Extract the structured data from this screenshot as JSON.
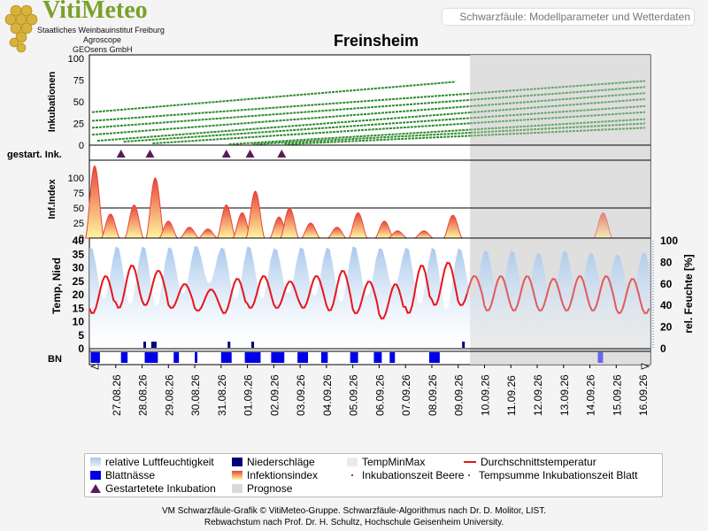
{
  "logo": {
    "title": "VitiMeteo",
    "line1": "Staatliches Weinbauinstitut Freiburg",
    "line2": "Agroscope",
    "line3": "GEOsens GmbH"
  },
  "header": {
    "subtitle": "Schwarzfäule: Modellparameter und Wetterdaten"
  },
  "title": "Freinsheim",
  "panels": {
    "incubation_label": "Inkubationen",
    "started_label": "gestart. Ink.",
    "infindex_label": "Inf.Index",
    "temp_label": "Temp, Nied",
    "humidity_label": "rel. Feuchte [%]",
    "bn_label": "BN"
  },
  "colors": {
    "incubation": "#2e8b2e",
    "forecast_bg": "#d9d9d9",
    "temp_line": "#e8141c",
    "humidity": "#a8c8ec",
    "rain": "#00007a",
    "leaf_wetness": "#0000e6",
    "started_marker": "#5a1a5a",
    "infection_top": "#e8453c",
    "infection_bottom": "#fff6a0"
  },
  "chart_data": {
    "type": "line",
    "x_dates": [
      "27.08.26",
      "28.08.26",
      "29.08.26",
      "30.08.26",
      "31.08.26",
      "01.09.26",
      "02.09.26",
      "03.09.26",
      "04.09.26",
      "05.09.26",
      "06.09.26",
      "07.09.26",
      "08.09.26",
      "09.09.26",
      "10.09.26",
      "11.09.26",
      "12.09.26",
      "13.09.26",
      "14.09.26",
      "15.09.26",
      "16.09.26"
    ],
    "forecast_start_day": 13.45,
    "incubation": {
      "yticks": [
        0,
        25,
        50,
        75,
        100
      ],
      "ylim": [
        0,
        100
      ],
      "lines": [
        {
          "start": -0.9,
          "end": 12.9,
          "y0": 38,
          "y1": 73
        },
        {
          "start": -0.9,
          "end": 20.1,
          "y0": 28,
          "y1": 74
        },
        {
          "start": -0.9,
          "end": 20.1,
          "y0": 20,
          "y1": 67
        },
        {
          "start": -0.9,
          "end": 20.1,
          "y0": 12,
          "y1": 60
        },
        {
          "start": -0.7,
          "end": 20.1,
          "y0": 5,
          "y1": 53
        },
        {
          "start": 0.3,
          "end": 20.1,
          "y0": 4,
          "y1": 45
        },
        {
          "start": 1.4,
          "end": 20.1,
          "y0": 2,
          "y1": 38
        },
        {
          "start": 4.3,
          "end": 20.1,
          "y0": 1,
          "y1": 30
        },
        {
          "start": 5.2,
          "end": 20.1,
          "y0": 1,
          "y1": 25
        },
        {
          "start": 6.4,
          "end": 20.1,
          "y0": 1,
          "y1": 20
        }
      ]
    },
    "started_infections_days": [
      0.2,
      1.3,
      4.2,
      5.1,
      6.3
    ],
    "infection_index": {
      "yticks": [
        0,
        25,
        50,
        75,
        100
      ],
      "ylim": [
        0,
        125
      ],
      "threshold": 50,
      "peaks": [
        {
          "day": -0.8,
          "value": 120
        },
        {
          "day": -0.2,
          "value": 40
        },
        {
          "day": 0.7,
          "value": 55
        },
        {
          "day": 1.5,
          "value": 100
        },
        {
          "day": 2.0,
          "value": 28
        },
        {
          "day": 2.8,
          "value": 18
        },
        {
          "day": 3.5,
          "value": 15
        },
        {
          "day": 4.2,
          "value": 55
        },
        {
          "day": 4.8,
          "value": 42
        },
        {
          "day": 5.3,
          "value": 78
        },
        {
          "day": 6.2,
          "value": 35
        },
        {
          "day": 6.6,
          "value": 50
        },
        {
          "day": 7.4,
          "value": 25
        },
        {
          "day": 8.4,
          "value": 18
        },
        {
          "day": 9.2,
          "value": 42
        },
        {
          "day": 10.2,
          "value": 28
        },
        {
          "day": 10.7,
          "value": 12
        },
        {
          "day": 11.7,
          "value": 12
        },
        {
          "day": 12.8,
          "value": 38
        },
        {
          "day": 18.5,
          "value": 42
        }
      ]
    },
    "temperature": {
      "ylim": [
        0,
        40
      ],
      "yticks": [
        0,
        5,
        10,
        15,
        20,
        25,
        30,
        35,
        40
      ],
      "daily_min": [
        13,
        15,
        16,
        15,
        14,
        13,
        15,
        15,
        15,
        14,
        13,
        11,
        13,
        16,
        16,
        14,
        14,
        14,
        14,
        14,
        13,
        13
      ],
      "daily_max": [
        27,
        31,
        29,
        24,
        22,
        26,
        27,
        25,
        27,
        29,
        25,
        24,
        31,
        32,
        27,
        27,
        27,
        26,
        27,
        27,
        26,
        25
      ]
    },
    "humidity": {
      "ylim": [
        0,
        100
      ],
      "yticks": [
        0,
        20,
        40,
        60,
        80,
        100
      ],
      "daily_max": [
        95,
        96,
        96,
        95,
        96,
        95,
        96,
        94,
        95,
        95,
        96,
        94,
        95,
        95,
        94,
        92,
        92,
        90,
        92,
        90,
        88,
        90
      ],
      "daily_min": [
        45,
        40,
        38,
        50,
        60,
        45,
        45,
        50,
        48,
        42,
        48,
        55,
        40,
        35,
        45,
        45,
        44,
        46,
        45,
        48,
        50,
        52
      ]
    },
    "rain_days": [
      1.1,
      1.4,
      1.5,
      4.3,
      5.2,
      13.2
    ],
    "leaf_wetness": [
      {
        "start": -0.95,
        "end": -0.6
      },
      {
        "start": 0.2,
        "end": 0.45
      },
      {
        "start": 1.1,
        "end": 1.6
      },
      {
        "start": 2.2,
        "end": 2.4
      },
      {
        "start": 3.0,
        "end": 3.1
      },
      {
        "start": 4.0,
        "end": 4.4
      },
      {
        "start": 4.9,
        "end": 5.5
      },
      {
        "start": 5.9,
        "end": 6.4
      },
      {
        "start": 6.9,
        "end": 7.3
      },
      {
        "start": 7.8,
        "end": 8.05
      },
      {
        "start": 8.9,
        "end": 9.2
      },
      {
        "start": 9.8,
        "end": 10.1
      },
      {
        "start": 10.4,
        "end": 10.6
      },
      {
        "start": 11.9,
        "end": 12.3
      },
      {
        "start": 18.3,
        "end": 18.5
      }
    ],
    "xlim": [
      -1,
      20.3
    ]
  },
  "legend": {
    "humidity": "relative Luftfeuchtigkeit",
    "rain": "Niederschläge",
    "tempminmax": "TempMinMax",
    "tempavg": "Durchschnittstemperatur",
    "leafwetness": "Blattnässe",
    "infindex": "Infektionsindex",
    "inc_berry": "Inkubationszeit Beere",
    "inc_leaf": "Tempsumme Inkubationszeit Blatt",
    "started": "Gestartetete Inkubation",
    "forecast": "Prognose"
  },
  "footer": {
    "line1": "VM Schwarzfäule-Grafik © VitiMeteo-Gruppe. Schwarzfäule-Algorithmus nach Dr. D. Molitor, LIST.",
    "line2": "Rebwachstum nach Prof. Dr. H. Schultz, Hochschule Geisenheim University."
  }
}
